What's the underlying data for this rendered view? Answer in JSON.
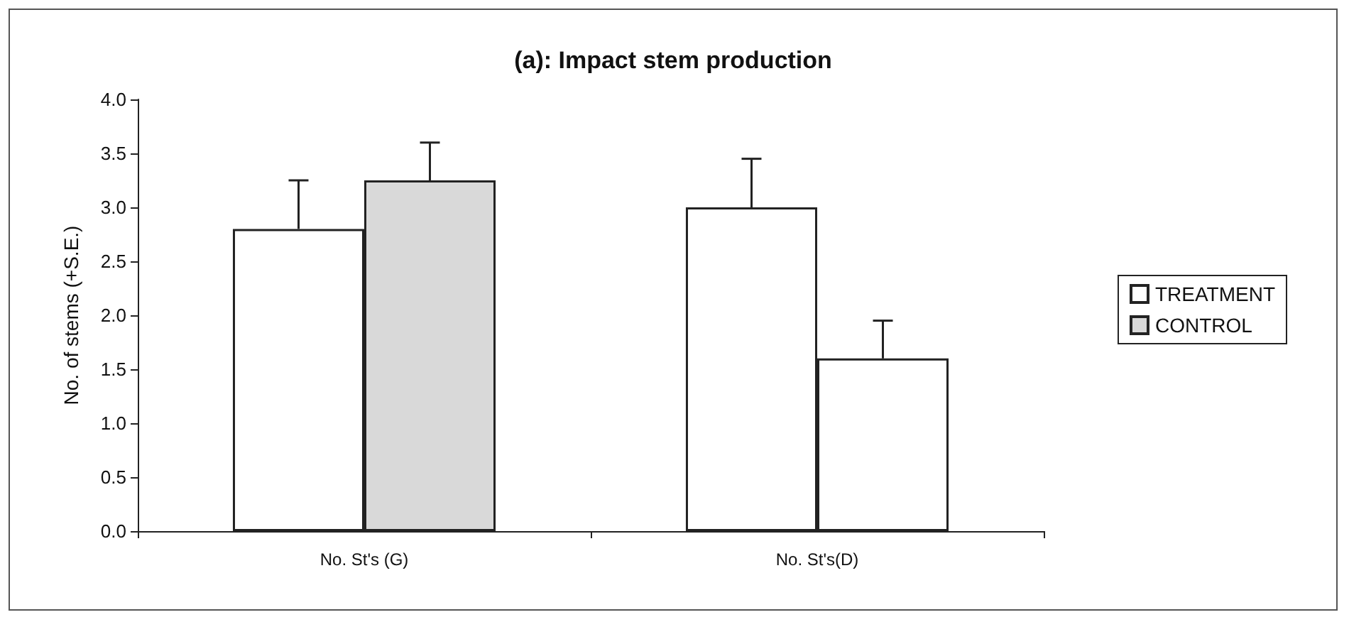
{
  "chart_data": {
    "type": "bar",
    "title": "(a): Impact stem production",
    "ylabel": "No. of stems (+S.E.)",
    "categories": [
      "No. St's (G)",
      "No. St's(D)"
    ],
    "series": [
      {
        "name": "TREATMENT",
        "colors": [
          "#ffffff",
          "#ffffff"
        ],
        "values": [
          2.8,
          3.0
        ],
        "errors": [
          [
            2.8,
            3.25
          ],
          [
            3.0,
            3.45
          ]
        ]
      },
      {
        "name": "CONTROL",
        "colors": [
          "#d9d9d9",
          "#ffffff"
        ],
        "values": [
          3.25,
          1.6
        ],
        "errors": [
          [
            3.25,
            3.6
          ],
          [
            1.6,
            1.95
          ]
        ]
      }
    ],
    "ylim": [
      0,
      4
    ],
    "yticks": [
      {
        "value": 0,
        "label": "0.0"
      },
      {
        "value": 0.5,
        "label": "0.5"
      },
      {
        "value": 1,
        "label": "1.0"
      },
      {
        "value": 1.5,
        "label": "1.5"
      },
      {
        "value": 2,
        "label": "2.0"
      },
      {
        "value": 2.5,
        "label": "2.5"
      },
      {
        "value": 3,
        "label": "3.0"
      },
      {
        "value": 3.5,
        "label": "3.5"
      },
      {
        "value": 4,
        "label": "4.0"
      }
    ],
    "grid": false,
    "legend": "right"
  }
}
